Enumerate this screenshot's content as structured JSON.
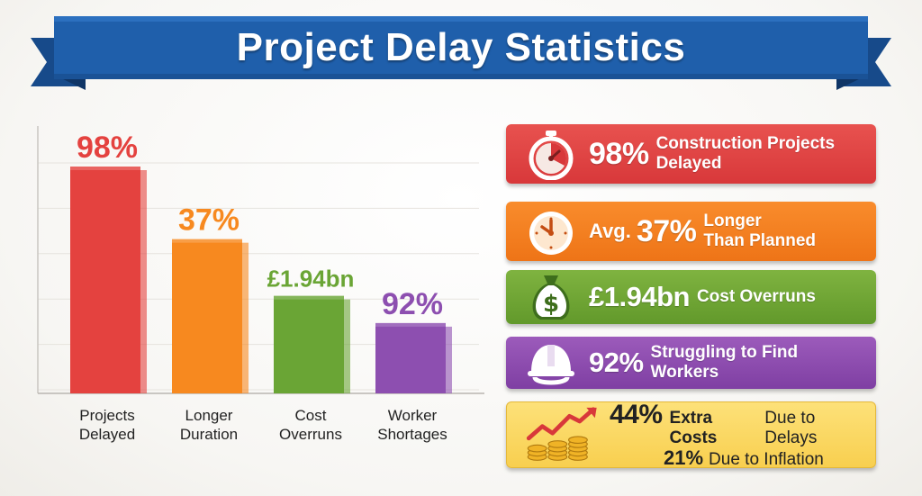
{
  "title": "Project Delay Statistics",
  "colors": {
    "banner": "#1f5fab",
    "red": "#e4423f",
    "orange": "#f7891f",
    "green": "#6aa535",
    "purple": "#8d4fb0",
    "yellow": "#fbd766"
  },
  "chart_data": {
    "type": "bar",
    "categories": [
      "Projects\nDelayed",
      "Longer\nDuration",
      "Cost\nOverruns",
      "Worker\nShortages"
    ],
    "value_labels": [
      "98%",
      "37%",
      "£1.94bn",
      "92%"
    ],
    "values": [
      98,
      37,
      1.94,
      92
    ],
    "relative_heights": [
      1.0,
      0.68,
      0.43,
      0.31
    ],
    "colors": [
      "#e4423f",
      "#f7891f",
      "#6aa535",
      "#8d4fb0"
    ],
    "title": "",
    "xlabel": "",
    "ylabel": "",
    "grid": true
  },
  "cards": [
    {
      "big": "98%",
      "text": "Construction Projects\nDelayed",
      "icon": "stopwatch-icon"
    },
    {
      "prefix": "Avg.",
      "big": "37%",
      "text": "Longer\nThan Planned",
      "icon": "clock-icon"
    },
    {
      "big": "£1.94bn",
      "text": "Cost Overruns",
      "icon": "money-bag-icon"
    },
    {
      "big": "92%",
      "text": "Struggling to Find Workers",
      "icon": "hard-hat-icon"
    },
    {
      "big": "44%",
      "text_bold": "Extra Costs",
      "text_rest": "Due to Delays",
      "big2": "21%",
      "text2": "Due to Inflation",
      "icon": "rising-chart-coins-icon"
    }
  ]
}
